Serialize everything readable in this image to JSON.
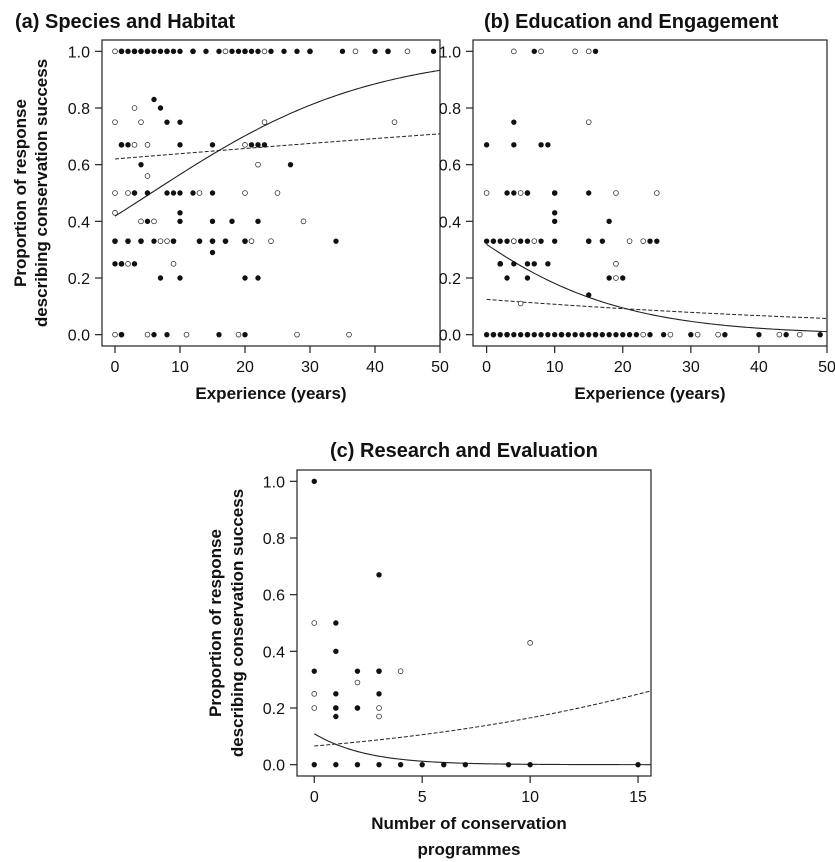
{
  "chart_data": [
    {
      "type": "scatter",
      "title": "(a)  Species and Habitat",
      "xlabel": "Experience (years)",
      "ylabel": [
        "Proportion of response",
        "describing conservation success"
      ],
      "xlim": [
        -2,
        50
      ],
      "ylim": [
        -0.04,
        1.04
      ],
      "xticks": [
        0,
        10,
        20,
        30,
        40,
        50
      ],
      "yticks": [
        0.0,
        0.2,
        0.4,
        0.6,
        0.8,
        1.0
      ],
      "ytick_labels": [
        "0.0",
        "0.2",
        "0.4",
        "0.6",
        "0.8",
        "1.0"
      ],
      "series": [
        {
          "marker": "filled",
          "x": [
            1,
            2,
            3,
            4,
            5,
            6,
            7,
            8,
            9,
            10,
            12,
            14,
            16,
            18,
            19,
            20,
            21,
            22,
            24,
            26,
            28,
            30,
            35,
            40,
            42,
            49,
            1,
            3,
            5,
            8,
            10,
            6,
            7,
            2,
            5,
            10,
            15,
            21,
            22,
            23,
            27,
            3,
            5,
            8,
            9,
            10,
            12,
            15,
            18,
            22,
            0,
            2,
            4,
            6,
            9,
            10,
            13,
            15,
            17,
            20,
            34,
            0,
            1,
            3,
            7,
            10,
            15,
            20,
            22,
            4,
            10,
            15,
            1,
            6,
            8,
            16,
            20
          ],
          "y": [
            1,
            1,
            1,
            1,
            1,
            1,
            1,
            1,
            1,
            1,
            1,
            1,
            1,
            1,
            1,
            1,
            1,
            1,
            1,
            1,
            1,
            1,
            1,
            1,
            1,
            1,
            0.67,
            0.5,
            0.4,
            0.75,
            0.75,
            0.83,
            0.8,
            0.67,
            0.5,
            0.67,
            0.67,
            0.67,
            0.67,
            0.67,
            0.6,
            0.5,
            0.5,
            0.5,
            0.5,
            0.43,
            0.5,
            0.5,
            0.4,
            0.4,
            0.33,
            0.33,
            0.33,
            0.33,
            0.33,
            0.4,
            0.33,
            0.33,
            0.33,
            0.33,
            0.33,
            0.25,
            0.25,
            0.25,
            0.2,
            0.2,
            0.29,
            0.2,
            0.2,
            0.6,
            0.5,
            0.4,
            0,
            0,
            0,
            0,
            0
          ]
        },
        {
          "marker": "open",
          "x": [
            0,
            1,
            3,
            4,
            5,
            8,
            12,
            17,
            20,
            23,
            30,
            37,
            42,
            45,
            0,
            3,
            4,
            23,
            43,
            1,
            3,
            5,
            20,
            22,
            0,
            2,
            5,
            13,
            20,
            25,
            0,
            4,
            6,
            9,
            15,
            0,
            2,
            7,
            20,
            2,
            9,
            1,
            4,
            8,
            13,
            17,
            21,
            24,
            29,
            0,
            1,
            5,
            11,
            19,
            28,
            36
          ],
          "y": [
            1,
            1,
            1,
            1,
            1,
            1,
            1,
            1,
            1,
            1,
            1,
            1,
            1,
            1,
            0.75,
            0.8,
            0.75,
            0.75,
            0.75,
            0.67,
            0.67,
            0.67,
            0.67,
            0.6,
            0.5,
            0.5,
            0.56,
            0.5,
            0.5,
            0.5,
            0.33,
            0.33,
            0.4,
            0.33,
            0.33,
            0.43,
            0.25,
            0.33,
            0.33,
            0.33,
            0.25,
            0.25,
            0.4,
            0.33,
            0.33,
            0.33,
            0.33,
            0.33,
            0.4,
            0,
            0,
            0,
            0,
            0,
            0,
            0
          ]
        }
      ],
      "fits": [
        {
          "style": "solid",
          "model": "logistic",
          "intercept": -0.33,
          "slope": 0.0593
        },
        {
          "style": "dashed",
          "model": "logistic",
          "intercept": 0.49,
          "slope": 0.008
        }
      ]
    },
    {
      "type": "scatter",
      "title": "(b)  Education and Engagement",
      "xlabel": "Experience (years)",
      "ylabel": [],
      "xlim": [
        -2,
        50
      ],
      "ylim": [
        -0.04,
        1.04
      ],
      "xticks": [
        0,
        10,
        20,
        30,
        40,
        50
      ],
      "yticks": [
        0.0,
        0.2,
        0.4,
        0.6,
        0.8,
        1.0
      ],
      "ytick_labels": [
        "0.0",
        "0.2",
        "0.4",
        "0.6",
        "0.8",
        "1.0"
      ],
      "series": [
        {
          "marker": "filled",
          "x": [
            7,
            16,
            4,
            8,
            0,
            4,
            9,
            3,
            4,
            6,
            10,
            15,
            1,
            2,
            3,
            5,
            6,
            8,
            10,
            15,
            18,
            25,
            0,
            1,
            2,
            4,
            6,
            9,
            10,
            17,
            24,
            2,
            3,
            6,
            7,
            10,
            18,
            20,
            15,
            0,
            1,
            2,
            3,
            4,
            5,
            6,
            7,
            8,
            9,
            10,
            11,
            12,
            13,
            14,
            15,
            16,
            17,
            18,
            19,
            20,
            21,
            22,
            24,
            26,
            30,
            35,
            40,
            44,
            49
          ],
          "y": [
            1,
            1,
            0.75,
            0.67,
            0.67,
            0.67,
            0.67,
            0.5,
            0.5,
            0.5,
            0.5,
            0.5,
            0.33,
            0.33,
            0.33,
            0.33,
            0.33,
            0.33,
            0.43,
            0.33,
            0.4,
            0.33,
            0.33,
            0.33,
            0.25,
            0.25,
            0.25,
            0.25,
            0.4,
            0.33,
            0.33,
            0.25,
            0.2,
            0.2,
            0.25,
            0.33,
            0.2,
            0.2,
            0.14,
            0,
            0,
            0,
            0,
            0,
            0,
            0,
            0,
            0,
            0,
            0,
            0,
            0,
            0,
            0,
            0,
            0,
            0,
            0,
            0,
            0,
            0,
            0,
            0,
            0,
            0,
            0,
            0,
            0,
            0
          ]
        },
        {
          "marker": "open",
          "x": [
            4,
            8,
            13,
            15,
            15,
            0,
            5,
            6,
            10,
            19,
            25,
            4,
            7,
            15,
            21,
            23,
            2,
            4,
            19,
            5,
            19,
            1,
            3,
            6,
            11,
            16,
            23,
            27,
            31,
            34,
            43,
            46
          ],
          "y": [
            1,
            1,
            1,
            1,
            0.75,
            0.5,
            0.5,
            0.5,
            0.5,
            0.5,
            0.5,
            0.33,
            0.33,
            0.33,
            0.33,
            0.33,
            0.25,
            0.33,
            0.25,
            0.11,
            0.2,
            0,
            0,
            0,
            0,
            0,
            0,
            0,
            0,
            0,
            0,
            0
          ]
        }
      ],
      "fits": [
        {
          "style": "solid",
          "model": "logistic",
          "intercept": -0.76,
          "slope": -0.075
        },
        {
          "style": "dashed",
          "model": "logistic",
          "intercept": -1.95,
          "slope": -0.017
        }
      ]
    },
    {
      "type": "scatter",
      "title": "(c)  Research and Evaluation",
      "xlabel": [
        "Number of conservation",
        "programmes"
      ],
      "ylabel": [
        "Proportion of response",
        "describing conservation success"
      ],
      "xlim": [
        -0.8,
        15.6
      ],
      "ylim": [
        -0.04,
        1.04
      ],
      "xticks": [
        0,
        5,
        10,
        15
      ],
      "yticks": [
        0.0,
        0.2,
        0.4,
        0.6,
        0.8,
        1.0
      ],
      "ytick_labels": [
        "0.0",
        "0.2",
        "0.4",
        "0.6",
        "0.8",
        "1.0"
      ],
      "series": [
        {
          "marker": "filled",
          "x": [
            0,
            3,
            1,
            1,
            0,
            2,
            3,
            1,
            1,
            2,
            3,
            1,
            0,
            1,
            2,
            3,
            4,
            5,
            6,
            7,
            9,
            10,
            15
          ],
          "y": [
            1,
            0.67,
            0.5,
            0.4,
            0.33,
            0.33,
            0.33,
            0.25,
            0.2,
            0.2,
            0.25,
            0.17,
            0,
            0,
            0,
            0,
            0,
            0,
            0,
            0,
            0,
            0,
            0
          ]
        },
        {
          "marker": "open",
          "x": [
            0,
            10,
            3,
            4,
            0,
            2,
            0,
            1,
            2,
            3,
            3
          ],
          "y": [
            0.5,
            0.43,
            0.33,
            0.33,
            0.25,
            0.29,
            0.2,
            0.2,
            0.2,
            0.2,
            0.17
          ]
        }
      ],
      "fits": [
        {
          "style": "solid",
          "model": "logistic",
          "intercept": -2.1,
          "slope": -0.46
        },
        {
          "style": "dashed",
          "model": "logistic",
          "intercept": -2.65,
          "slope": 0.103
        }
      ]
    }
  ]
}
